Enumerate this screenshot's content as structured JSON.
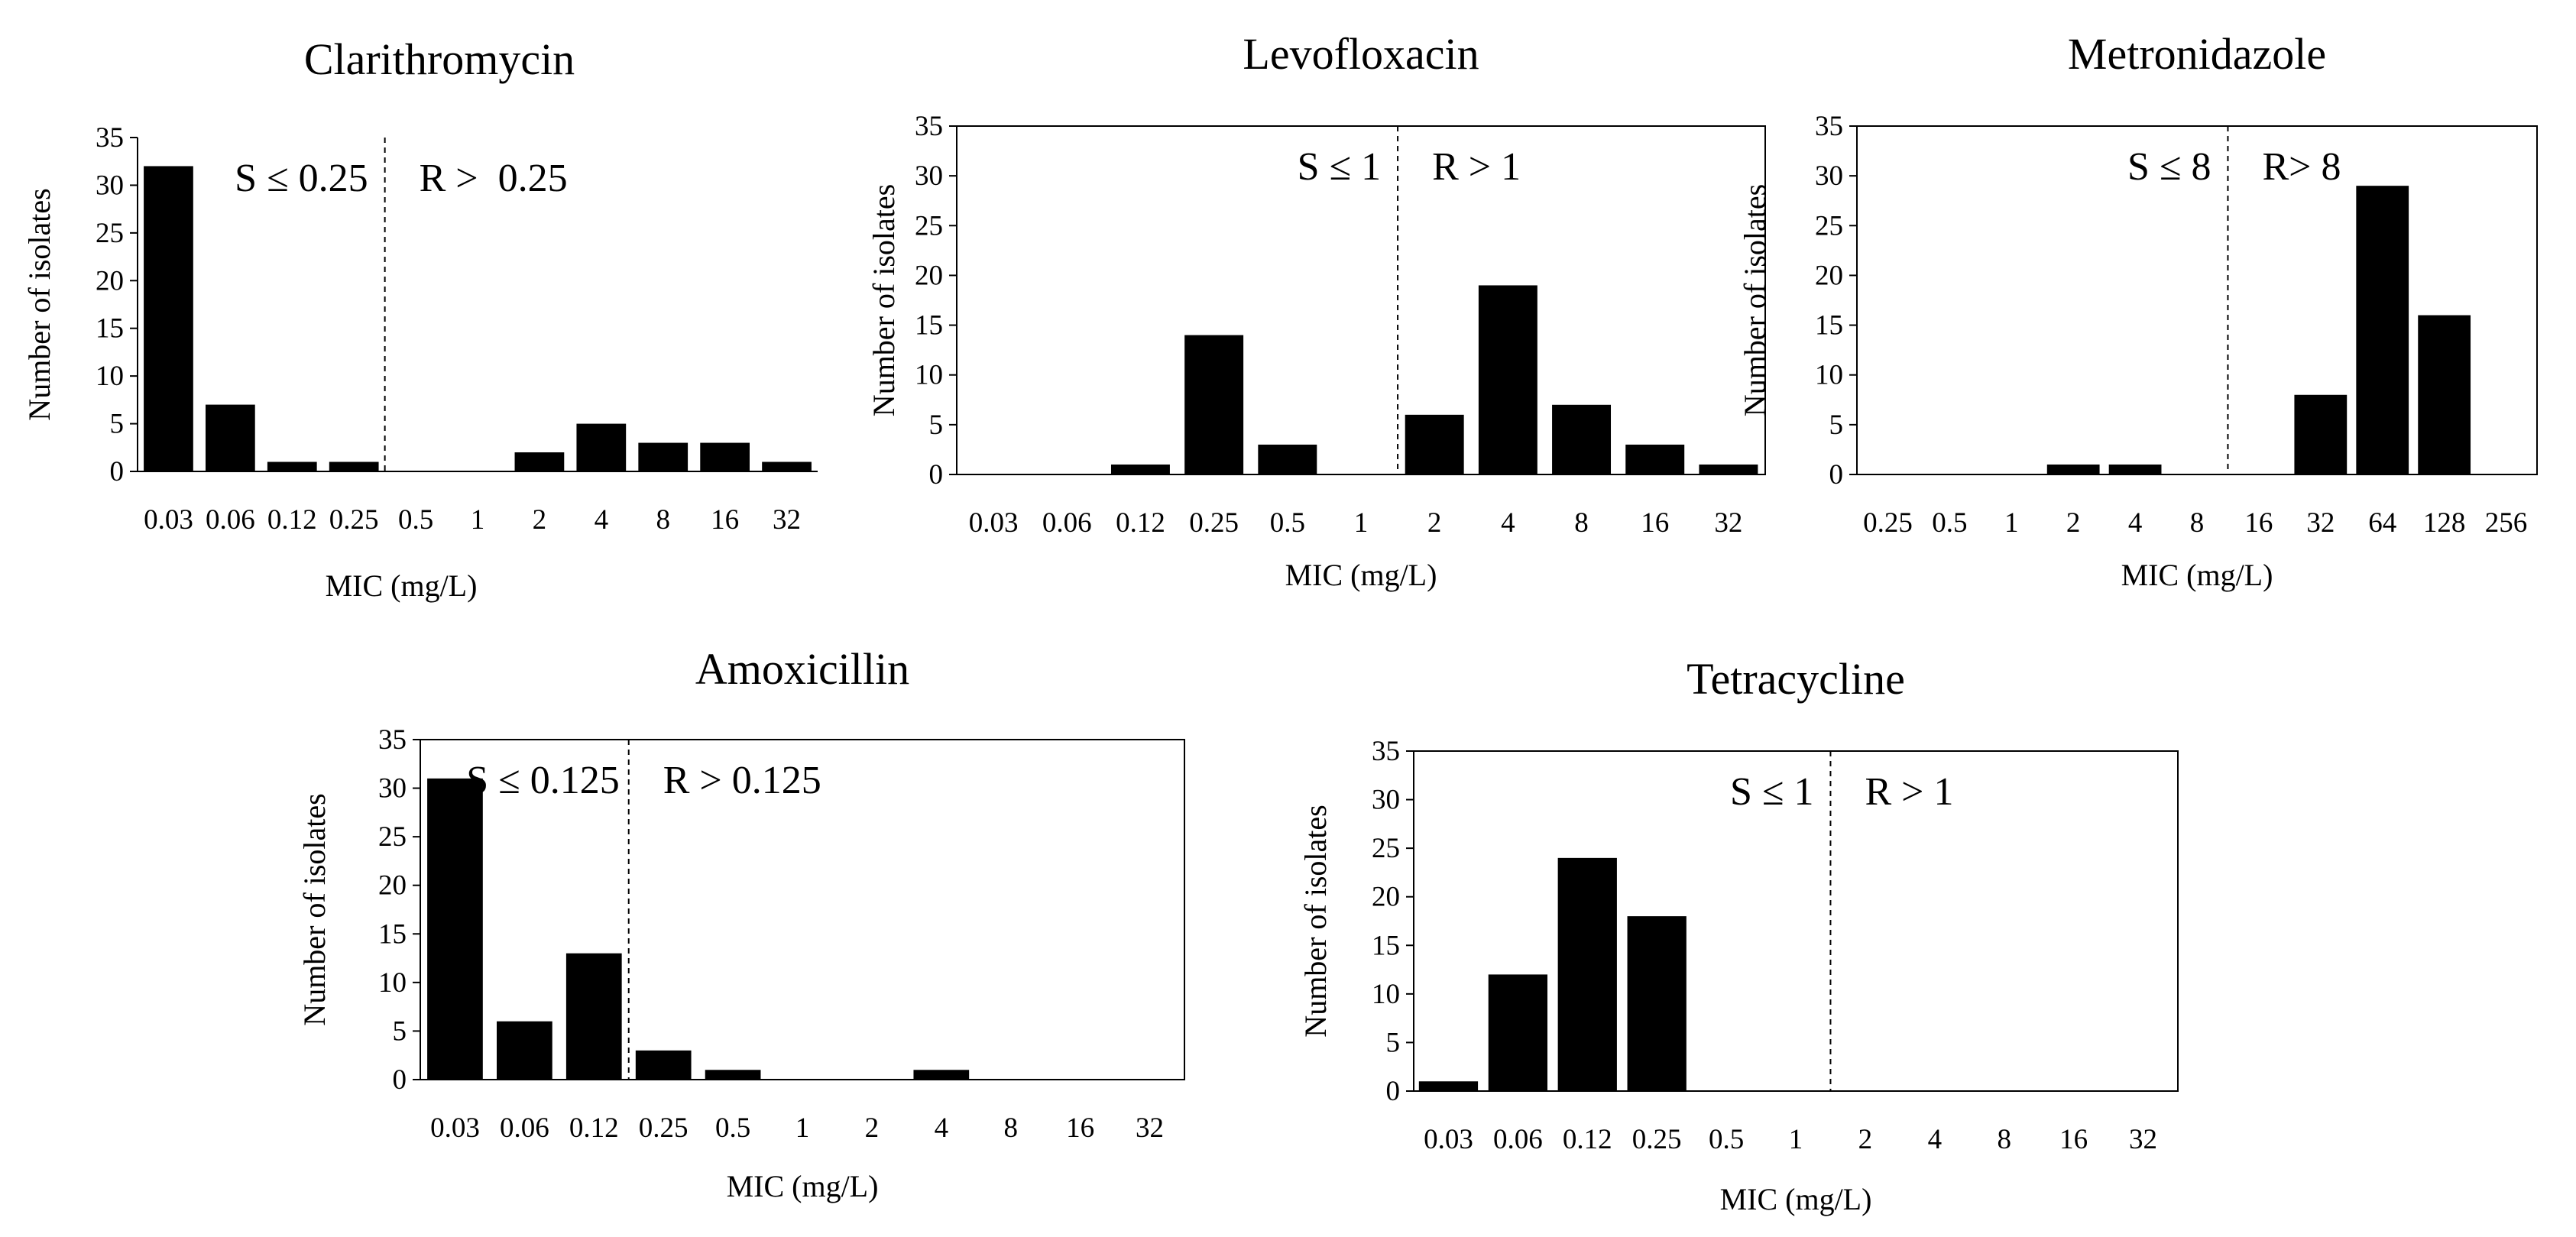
{
  "chart_data": [
    {
      "type": "bar",
      "title": "Clarithromycin",
      "categories": [
        "0.03",
        "0.06",
        "0.12",
        "0.25",
        "0.5",
        "1",
        "2",
        "4",
        "8",
        "16",
        "32"
      ],
      "values": [
        32,
        7,
        1,
        1,
        0,
        0,
        2,
        5,
        3,
        3,
        1
      ],
      "xlabel": "MIC (mg/L)",
      "ylabel": "Number of isolates",
      "ylim": [
        0,
        35
      ],
      "yticks": [
        "0",
        "5",
        "10",
        "15",
        "20",
        "25",
        "30",
        "35"
      ],
      "breakpoint_after_index": 3,
      "susceptible_label": "S ≤ 0.25",
      "resistant_label": "R >  0.25"
    },
    {
      "type": "bar",
      "title": "Levofloxacin",
      "categories": [
        "0.03",
        "0.06",
        "0.12",
        "0.25",
        "0.5",
        "1",
        "2",
        "4",
        "8",
        "16",
        "32"
      ],
      "values": [
        0,
        0,
        1,
        14,
        3,
        0,
        6,
        19,
        7,
        3,
        1
      ],
      "xlabel": "MIC (mg/L)",
      "ylabel": "Number of isolates",
      "ylim": [
        0,
        35
      ],
      "yticks": [
        "0",
        "5",
        "10",
        "15",
        "20",
        "25",
        "30",
        "35"
      ],
      "breakpoint_after_index": 5,
      "susceptible_label": "S ≤ 1",
      "resistant_label": "R > 1"
    },
    {
      "type": "bar",
      "title": "Metronidazole",
      "categories": [
        "0.25",
        "0.5",
        "1",
        "2",
        "4",
        "8",
        "16",
        "32",
        "64",
        "128",
        "256"
      ],
      "values": [
        0,
        0,
        0,
        1,
        1,
        0,
        0,
        8,
        29,
        16,
        0
      ],
      "xlabel": "MIC (mg/L)",
      "ylabel": "Number of isolates",
      "ylim": [
        0,
        35
      ],
      "yticks": [
        "0",
        "5",
        "10",
        "15",
        "20",
        "25",
        "30",
        "35"
      ],
      "breakpoint_after_index": 5,
      "susceptible_label": "S ≤ 8",
      "resistant_label": "R> 8"
    },
    {
      "type": "bar",
      "title": "Amoxicillin",
      "categories": [
        "0.03",
        "0.06",
        "0.12",
        "0.25",
        "0.5",
        "1",
        "2",
        "4",
        "8",
        "16",
        "32"
      ],
      "values": [
        31,
        6,
        13,
        3,
        1,
        0,
        0,
        1,
        0,
        0,
        0
      ],
      "xlabel": "MIC (mg/L)",
      "ylabel": "Number of isolates",
      "ylim": [
        0,
        35
      ],
      "yticks": [
        "0",
        "5",
        "10",
        "15",
        "20",
        "25",
        "30",
        "35"
      ],
      "breakpoint_after_index": 2,
      "susceptible_label": "S ≤ 0.125",
      "resistant_label": "R > 0.125"
    },
    {
      "type": "bar",
      "title": "Tetracycline",
      "categories": [
        "0.03",
        "0.06",
        "0.12",
        "0.25",
        "0.5",
        "1",
        "2",
        "4",
        "8",
        "16",
        "32"
      ],
      "values": [
        1,
        12,
        24,
        18,
        0,
        0,
        0,
        0,
        0,
        0,
        0
      ],
      "xlabel": "MIC (mg/L)",
      "ylabel": "Number of isolates",
      "ylim": [
        0,
        35
      ],
      "yticks": [
        "0",
        "5",
        "10",
        "15",
        "20",
        "25",
        "30",
        "35"
      ],
      "breakpoint_after_index": 5,
      "susceptible_label": "S ≤ 1",
      "resistant_label": "R > 1"
    }
  ]
}
